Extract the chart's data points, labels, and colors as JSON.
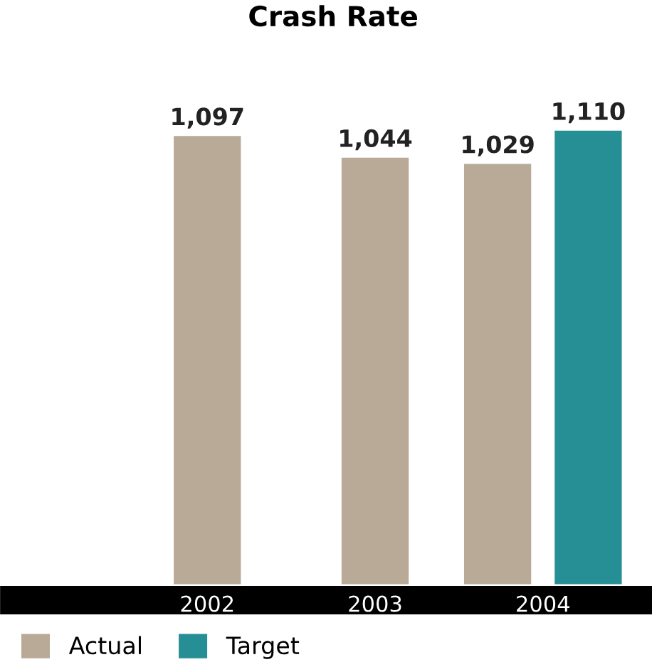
{
  "chart_data": {
    "type": "bar",
    "title": "Crash Rate",
    "categories": [
      "2002",
      "2003",
      "2004"
    ],
    "series": [
      {
        "name": "Actual",
        "color": "#b8aa96",
        "values": [
          1097,
          1044,
          1029
        ],
        "value_labels": [
          "1,097",
          "1,044",
          "1,029"
        ]
      },
      {
        "name": "Target",
        "color": "#268f96",
        "values": [
          null,
          null,
          1110
        ],
        "value_labels": [
          null,
          null,
          "1,110"
        ]
      }
    ],
    "legend": "bottom left",
    "grid": false
  }
}
